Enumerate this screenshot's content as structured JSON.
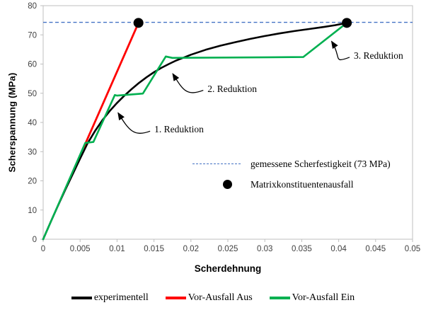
{
  "chart_data": {
    "type": "line",
    "title": "",
    "xlabel": "Scherdehnung",
    "ylabel": "Scherspannung (MPa)",
    "xlim": [
      0,
      0.05
    ],
    "ylim": [
      0,
      80
    ],
    "x_ticks": [
      "0",
      "0.005",
      "0.01",
      "0.015",
      "0.02",
      "0.025",
      "0.03",
      "0.035",
      "0.04",
      "0.045",
      "0.05"
    ],
    "y_ticks": [
      "0",
      "10",
      "20",
      "30",
      "40",
      "50",
      "60",
      "70",
      "80"
    ],
    "grid": false,
    "legend_position": "bottom",
    "series": [
      {
        "name": "experimentell",
        "color": "#000000",
        "width": 2.6,
        "points": [
          [
            0,
            0
          ],
          [
            0.001,
            5.8
          ],
          [
            0.002,
            11.5
          ],
          [
            0.003,
            17.0
          ],
          [
            0.004,
            22.3
          ],
          [
            0.005,
            27.6
          ],
          [
            0.006,
            32.8
          ],
          [
            0.007,
            37.0
          ],
          [
            0.008,
            40.7
          ],
          [
            0.009,
            43.9
          ],
          [
            0.01,
            46.7
          ],
          [
            0.011,
            49.2
          ],
          [
            0.012,
            51.5
          ],
          [
            0.013,
            53.6
          ],
          [
            0.014,
            55.5
          ],
          [
            0.015,
            57.2
          ],
          [
            0.016,
            58.7
          ],
          [
            0.017,
            60.0
          ],
          [
            0.018,
            61.2
          ],
          [
            0.019,
            62.2
          ],
          [
            0.02,
            63.2
          ],
          [
            0.022,
            64.9
          ],
          [
            0.024,
            66.3
          ],
          [
            0.026,
            67.5
          ],
          [
            0.028,
            68.6
          ],
          [
            0.03,
            69.6
          ],
          [
            0.032,
            70.5
          ],
          [
            0.034,
            71.3
          ],
          [
            0.036,
            72.0
          ],
          [
            0.038,
            72.7
          ],
          [
            0.0395,
            73.3
          ],
          [
            0.0411,
            74.1
          ]
        ]
      },
      {
        "name": "Vor-Ausfall Aus",
        "color": "#ff0000",
        "width": 2.8,
        "points": [
          [
            0.0055,
            31.5
          ],
          [
            0.0129,
            74.1
          ]
        ]
      },
      {
        "name": "Vor-Ausfall Ein",
        "color": "#00b050",
        "width": 2.6,
        "points": [
          [
            0,
            0
          ],
          [
            0.0057,
            33.0
          ],
          [
            0.0068,
            33.3
          ],
          [
            0.0097,
            49.4
          ],
          [
            0.01,
            49.2
          ],
          [
            0.0135,
            49.9
          ],
          [
            0.0166,
            62.6
          ],
          [
            0.0175,
            62.1
          ],
          [
            0.0352,
            62.4
          ],
          [
            0.0411,
            74.1
          ]
        ]
      }
    ],
    "reference_line": {
      "label": "gemessene Scherfestigkeit (73 MPa)",
      "value": 73,
      "display_y": 74.3,
      "color": "#4472c4",
      "style": "dashed"
    },
    "markers": {
      "label": "Matrixkonstituentenausfall",
      "color": "#000000",
      "radius": 7,
      "points": [
        [
          0.0129,
          74.1
        ],
        [
          0.0411,
          74.1
        ]
      ]
    },
    "annotations": [
      {
        "label": "1. Reduktion",
        "text_xy": [
          0.01505,
          37.5
        ],
        "tip_xy": [
          0.01,
          44.0
        ]
      },
      {
        "label": "2. Reduktion",
        "text_xy": [
          0.02225,
          51.5
        ],
        "tip_xy": [
          0.0174,
          57.4
        ]
      },
      {
        "label": "3. Reduktion",
        "text_xy": [
          0.04205,
          62.8
        ],
        "tip_xy": [
          0.0389,
          68.5
        ]
      }
    ]
  },
  "axes": {
    "x_title": "Scherdehnung",
    "y_title": "Scherspannung (MPa)"
  },
  "inner_legend": {
    "items": [
      {
        "label": "gemessene Scherfestigkeit (73 MPa)",
        "swatch": "dashed-line-icon",
        "color": "#4472c4"
      },
      {
        "label": "Matrixkonstituentenausfall",
        "swatch": "dot-icon",
        "color": "#000000"
      }
    ]
  },
  "legend": {
    "items": [
      {
        "label": "experimentell",
        "color": "#000000"
      },
      {
        "label": "Vor-Ausfall Aus",
        "color": "#ff0000"
      },
      {
        "label": "Vor-Ausfall Ein",
        "color": "#00b050"
      }
    ]
  },
  "style": {
    "axis_color": "#bfbfbf",
    "tick_label_color": "#404040"
  }
}
